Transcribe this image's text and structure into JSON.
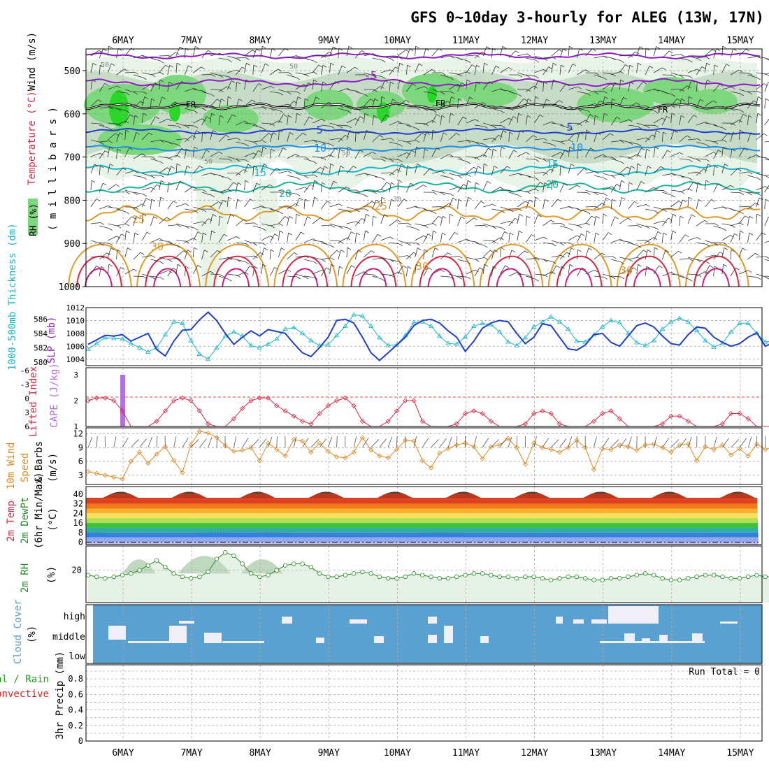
{
  "title": "GFS 0~10day 3-hourly for ALEG (13W, 17N)",
  "colors": {
    "purple": "#8b1dc4",
    "dark_blue": "#1f40c8",
    "light_blue": "#1e8ee8",
    "cyan": "#1ab6c8",
    "teal": "#19b59a",
    "orange": "#e09a2a",
    "red": "#d82845",
    "magenta": "#d01a86",
    "rh_light": "#e8f4e8",
    "rh_mid": "#c6dcc6",
    "rh_green": "#7dd87d",
    "rh_bright": "#27d827",
    "cape": "#b070e0",
    "wind_orange": "#e08a20",
    "rh2m": "#2a8a2a",
    "rh2m_fill": "#e6f2e6",
    "cloud_bg": "#5aa0d0",
    "cloud_white": "#f0eef8",
    "precip_green": "#1fa01f",
    "precip_red": "#e02020"
  },
  "days": [
    "6MAY",
    "7MAY",
    "8MAY",
    "9MAY",
    "10MAY",
    "11MAY",
    "12MAY",
    "13MAY",
    "14MAY",
    "15MAY"
  ],
  "panels": {
    "upper": {
      "ylabel_parts": [
        "Wind (m/s)",
        "Temperature (°C)",
        "RH (%)"
      ],
      "pressure_label": "( m i l l i b a r s )",
      "levels": [
        "500",
        "600",
        "700",
        "800",
        "900",
        "1000"
      ],
      "temp_labels": [
        "-5",
        "5",
        "10",
        "15",
        "20",
        "25",
        "30",
        "30",
        "30"
      ],
      "freezing_labels": [
        "FR",
        "FR",
        "FR"
      ],
      "rh_labels": [
        "50",
        "50",
        "50",
        "50",
        "30"
      ]
    },
    "thickness": {
      "ylabel_left": "1000-500mb Thickness (dm)",
      "ylabel_right": "SLP (mb)",
      "left_ticks": [
        "586",
        "584",
        "582",
        "580"
      ],
      "right_ticks": [
        "1012",
        "1010",
        "1008",
        "1006",
        "1004"
      ]
    },
    "cape": {
      "ylabel_left": "Lifted Index",
      "ylabel_right": "CAPE (J/kg)",
      "left_ticks": [
        "-6",
        "-3",
        "0",
        "3",
        "6"
      ],
      "right_ticks": [
        "3",
        "2",
        "1"
      ]
    },
    "wind10": {
      "ylabel": "10m Wind Speed & Barbs (m/s)",
      "ylabel_parts": [
        "10m Wind",
        "Speed",
        "& Barbs",
        "(m/s)"
      ],
      "ticks": [
        "12",
        "9",
        "6",
        "3"
      ]
    },
    "temp2m": {
      "ylabel_parts": [
        "2m Temp",
        "2m DewPt",
        "(6hr Min/Max)",
        "(°C)"
      ],
      "ticks": [
        "40",
        "32",
        "24",
        "16",
        "8",
        "0"
      ]
    },
    "rh2m": {
      "ylabel": "2m RH",
      "unit": "(%)",
      "ticks": [
        "20"
      ]
    },
    "cloud": {
      "ylabel": "Cloud Cover",
      "unit": "(%)",
      "ticks": [
        "high",
        "middle",
        "low"
      ]
    },
    "precip": {
      "ylabel_parts": [
        "Total / Rain",
        "Convective",
        "3hr Precip (mm)"
      ],
      "ticks": [
        "0.8",
        "0.6",
        "0.4",
        "0.2",
        "0"
      ],
      "run_total": "Run Total = 0"
    }
  },
  "chart_data": [
    {
      "type": "line",
      "title": "1000-500mb Thickness (dm) and SLP (mb)",
      "x": "3-hourly steps, 6MAY-15MAY",
      "series": [
        {
          "name": "1000-500mb Thickness (dm)",
          "axis": "left",
          "values": [
            581.8,
            582.6,
            583.4,
            583.3,
            583.2,
            582.6,
            582.0,
            581.4,
            582.0,
            583.8,
            585.6,
            585.4,
            583.0,
            581.1,
            580.4,
            582.0,
            583.6,
            584.2,
            583.6,
            582.3,
            582.0,
            582.5,
            583.2,
            584.6,
            584.8,
            584.0,
            583.0,
            582.3,
            582.4,
            583.7,
            585.0,
            586.6,
            586.4,
            585.0,
            583.4,
            582.3,
            582.4,
            583.7,
            585.5,
            585.6,
            585.0,
            583.6,
            582.6,
            582.5,
            583.5,
            585.0,
            585.4,
            585.2,
            584.2,
            582.8,
            582.3,
            583.4,
            584.9,
            585.6,
            586.3,
            585.6,
            584.6,
            582.9,
            582.8,
            583.8,
            584.9,
            585.8,
            585.5,
            584.0,
            582.7,
            582.3,
            583.0,
            584.6,
            585.6,
            586.1,
            585.6,
            584.4,
            583.0,
            582.1,
            582.6,
            584.2,
            585.4,
            585.4,
            584.0,
            582.8,
            582.9
          ]
        },
        {
          "name": "SLP (mb)",
          "axis": "right",
          "values": [
            1006.3,
            1007.0,
            1007.7,
            1007.6,
            1007.8,
            1006.8,
            1007.4,
            1008.0,
            1005.5,
            1004.5,
            1006.8,
            1008.5,
            1008.6,
            1010.1,
            1011.3,
            1010.0,
            1008.0,
            1006.3,
            1007.4,
            1008.4,
            1007.6,
            1008.6,
            1008.3,
            1008.0,
            1006.4,
            1005.0,
            1004.4,
            1005.8,
            1007.4,
            1010.0,
            1010.2,
            1009.6,
            1007.4,
            1005.0,
            1003.8,
            1005.0,
            1006.2,
            1007.4,
            1009.2,
            1010.0,
            1010.2,
            1009.6,
            1008.4,
            1007.4,
            1005.2,
            1006.8,
            1008.8,
            1009.6,
            1010.0,
            1009.8,
            1008.0,
            1006.4,
            1007.4,
            1009.5,
            1009.2,
            1007.4,
            1005.6,
            1005.4,
            1006.2,
            1007.8,
            1008.0,
            1006.6,
            1006.0,
            1007.6,
            1009.2,
            1009.6,
            1009.0,
            1007.6,
            1006.4,
            1006.2,
            1007.8,
            1009.0,
            1008.8,
            1007.4,
            1006.6,
            1006.0,
            1006.4,
            1007.4,
            1008.1,
            1006.0,
            1006.6
          ]
        }
      ]
    },
    {
      "type": "line",
      "title": "Lifted Index and CAPE (J/kg)",
      "series": [
        {
          "name": "Lifted Index",
          "values": [
            2.0,
            2.1,
            2.1,
            2.0,
            1.6,
            1.0,
            0.6,
            0.8,
            1.2,
            1.6,
            2.0,
            2.1,
            2.0,
            1.6,
            1.1,
            0.7,
            0.8,
            1.3,
            1.7,
            2.0,
            2.1,
            2.1,
            1.8,
            1.6,
            1.4,
            1.2,
            1.1,
            1.5,
            1.8,
            2.0,
            2.1,
            1.8,
            1.2,
            0.6,
            0.6,
            1.2,
            1.6,
            2.0,
            2.0,
            1.2,
            0.6,
            0.6,
            0.8,
            1.1,
            1.5,
            1.6,
            1.5,
            1.2,
            0.9,
            0.7,
            0.8,
            1.1,
            1.5,
            1.6,
            1.5,
            1.1,
            0.8,
            0.7,
            0.8,
            1.2,
            1.5,
            1.6,
            1.3,
            1.0,
            0.7,
            0.7,
            0.8,
            1.1,
            1.4,
            1.4,
            1.2,
            0.9,
            0.7,
            0.8,
            1.1,
            1.5,
            1.5,
            1.3,
            1.0,
            0.8,
            0.8
          ]
        },
        {
          "name": "CAPE (J/kg)",
          "values": [
            3.0
          ]
        }
      ]
    },
    {
      "type": "line",
      "title": "10m Wind Speed (m/s)",
      "series": [
        {
          "name": "10m Wind Speed",
          "values": [
            3.8,
            3.4,
            3.0,
            2.6,
            2.2,
            6.0,
            8.0,
            5.6,
            7.6,
            9.2,
            6.2,
            3.6,
            9.6,
            12.6,
            12.2,
            11.2,
            9.4,
            8.2,
            8.4,
            9.0,
            6.2,
            10.0,
            8.6,
            7.2,
            10.8,
            10.4,
            8.0,
            10.0,
            8.2,
            7.0,
            6.8,
            8.0,
            11.2,
            8.5,
            7.2,
            6.8,
            8.6,
            10.6,
            10.4,
            6.2,
            4.6,
            7.8,
            8.8,
            9.6,
            10.0,
            9.2,
            6.6,
            9.2,
            9.6,
            11.0,
            9.0,
            5.4,
            10.0,
            9.0,
            8.6,
            8.0,
            9.0,
            10.6,
            9.0,
            4.2,
            8.8,
            8.6,
            9.6,
            9.2,
            8.4,
            9.6,
            9.8,
            9.0,
            8.0,
            9.6,
            9.8,
            6.2,
            9.2,
            8.6,
            9.6,
            7.4,
            8.8,
            7.2,
            9.8,
            8.6,
            9.2
          ]
        }
      ]
    },
    {
      "type": "area",
      "title": "2m Temp / DewPt (°C)",
      "series": [
        {
          "name": "2m Temp max",
          "values": [
            40.0,
            42.0,
            42.0,
            34.0,
            42.0,
            42.0,
            34.0,
            42.0,
            42.0,
            34.0,
            42.0,
            42.0,
            34.0,
            42.0,
            42.0,
            34.0,
            42.0,
            42.0,
            34.0,
            42.0,
            42.0,
            34.0,
            42.0,
            42.0,
            34.0,
            42.0,
            42.0,
            34.0,
            42.0,
            42.0
          ]
        },
        {
          "name": "2m DewPt",
          "values": [
            8.0,
            8.0,
            6.0,
            10.0,
            9.0,
            8.5,
            8.0,
            7.0,
            7.0,
            8.0,
            8.0,
            7.0,
            8.0,
            7.0,
            6.0,
            6.0,
            7.0,
            5.0,
            5.0,
            4.0,
            4.0,
            5.0,
            4.0,
            3.0
          ]
        }
      ]
    },
    {
      "type": "area",
      "title": "2m RH (%)",
      "series": [
        {
          "name": "2m RH",
          "values": [
            17,
            16,
            15,
            16,
            17,
            18,
            20,
            23,
            26,
            22,
            18,
            16,
            15,
            16,
            19,
            27,
            31,
            29,
            24,
            18,
            16,
            17,
            20,
            23,
            24,
            24,
            22,
            18,
            16,
            16,
            17,
            18,
            19,
            18,
            16,
            15,
            15,
            16,
            18,
            17,
            16,
            15,
            15,
            16,
            17,
            18,
            18,
            17,
            16,
            16,
            15,
            16,
            16,
            15,
            14,
            15,
            16,
            16,
            15,
            14,
            14,
            15,
            15,
            16,
            17,
            18,
            17,
            15,
            14,
            14,
            15,
            16,
            17,
            17,
            16,
            15,
            15,
            16,
            17,
            16,
            16
          ]
        }
      ]
    },
    {
      "type": "heatmap",
      "title": "Cloud Cover (%)",
      "series": [
        {
          "name": "high",
          "values": [
            0,
            0,
            0,
            0,
            0,
            0,
            0,
            0,
            0,
            0,
            0,
            0,
            0,
            0,
            0,
            0,
            0,
            0,
            0,
            0,
            0,
            0,
            0,
            0,
            0,
            0,
            0,
            0,
            0,
            0,
            0,
            0,
            0,
            0,
            0,
            0,
            0,
            0,
            0,
            0,
            0,
            0,
            0,
            0,
            0,
            0,
            0,
            0,
            0,
            0,
            0,
            0,
            0,
            0,
            0,
            0,
            0,
            0,
            0,
            0,
            0,
            0,
            0,
            0,
            0,
            0,
            0,
            0,
            0,
            0,
            0,
            0,
            1,
            1,
            1,
            1,
            1,
            1,
            1,
            1,
            1,
            0,
            0,
            0,
            0,
            0,
            0,
            0,
            0,
            0
          ]
        }
      ]
    },
    {
      "type": "line",
      "title": "3hr Precip (mm)",
      "ylim": [
        0,
        0.9
      ],
      "series": [
        {
          "name": "Total / Rain",
          "values": [
            0
          ]
        },
        {
          "name": "Convective",
          "values": [
            0
          ]
        }
      ]
    }
  ]
}
